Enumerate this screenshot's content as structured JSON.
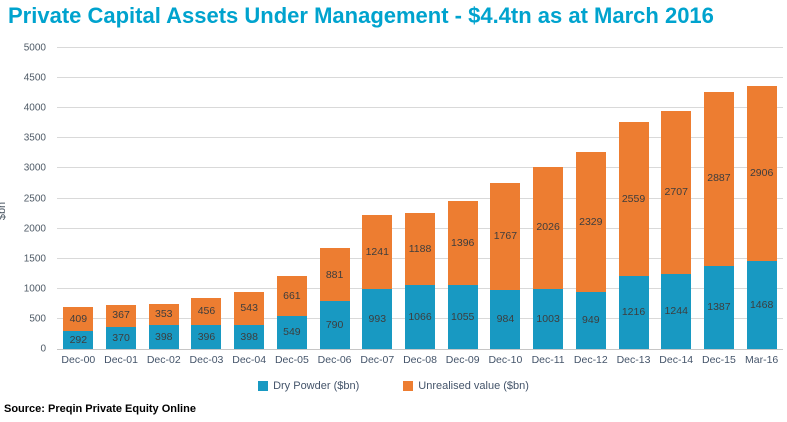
{
  "title": "Private Capital Assets Under Management - $4.4tn as at March 2016",
  "source": "Source: Preqin Private Equity Online",
  "colors": {
    "title": "#00A3CE",
    "dry_powder": "#1899C2",
    "unrealised_value": "#ED7D31",
    "gridline": "#D9D9D9",
    "axis_text": "#44546A",
    "data_label": "#3D3D3D"
  },
  "chart_data": {
    "type": "bar",
    "stacked": true,
    "title": "Private Capital Assets Under Management - $4.4tn as at March 2016",
    "xlabel": "",
    "ylabel": "$bn",
    "ylim": [
      0,
      5000
    ],
    "ytick_step": 500,
    "yticks": [
      0,
      500,
      1000,
      1500,
      2000,
      2500,
      3000,
      3500,
      4000,
      4500,
      5000
    ],
    "grid": true,
    "legend_position": "bottom",
    "data_labels": "center",
    "categories": [
      "Dec-00",
      "Dec-01",
      "Dec-02",
      "Dec-03",
      "Dec-04",
      "Dec-05",
      "Dec-06",
      "Dec-07",
      "Dec-08",
      "Dec-09",
      "Dec-10",
      "Dec-11",
      "Dec-12",
      "Dec-13",
      "Dec-14",
      "Dec-15",
      "Mar-16"
    ],
    "series": [
      {
        "name": "Dry Powder ($bn)",
        "color": "#1899C2",
        "values": [
          292,
          370,
          398,
          396,
          398,
          549,
          790,
          993,
          1066,
          1055,
          984,
          1003,
          949,
          1216,
          1244,
          1387,
          1468
        ]
      },
      {
        "name": "Unrealised value ($bn)",
        "color": "#ED7D31",
        "values": [
          409,
          367,
          353,
          456,
          543,
          661,
          881,
          1241,
          1188,
          1396,
          1767,
          2026,
          2329,
          2559,
          2707,
          2887,
          2906
        ]
      }
    ]
  }
}
